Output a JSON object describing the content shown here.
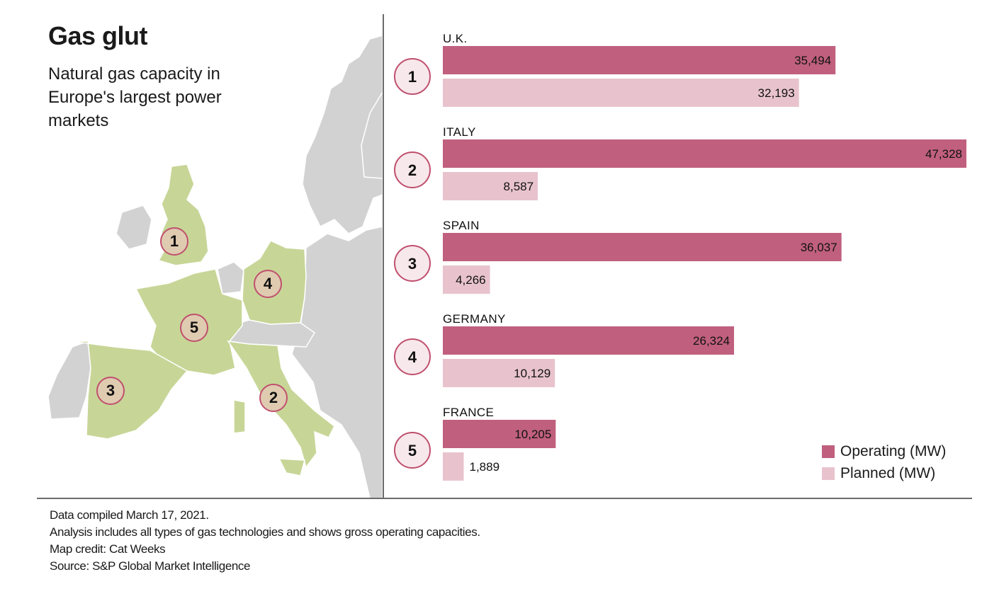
{
  "title": "Gas glut",
  "subtitle": "Natural gas capacity in Europe's largest power markets",
  "colors": {
    "operating": "#c0607e",
    "planned": "#e8c3cd",
    "highlight_land": "#c7d697",
    "other_land": "#d2d2d2",
    "marker_fill": "#dfcbb0",
    "marker_stroke": "#c0506e",
    "rank_circle_fill": "#f7e8ec"
  },
  "map_markers": [
    "1",
    "2",
    "3",
    "4",
    "5"
  ],
  "chart_data": {
    "type": "bar",
    "orientation": "horizontal",
    "categories": [
      "U.K.",
      "ITALY",
      "SPAIN",
      "GERMANY",
      "FRANCE"
    ],
    "ranks": [
      "1",
      "2",
      "3",
      "4",
      "5"
    ],
    "series": [
      {
        "name": "Operating (MW)",
        "values": [
          35494,
          47328,
          36037,
          26324,
          10205
        ]
      },
      {
        "name": "Planned (MW)",
        "values": [
          32193,
          8587,
          4266,
          10129,
          1889
        ]
      }
    ],
    "value_labels": [
      [
        "35,494",
        "47,328",
        "36,037",
        "26,324",
        "10,205"
      ],
      [
        "32,193",
        "8,587",
        "4,266",
        "10,129",
        "1,889"
      ]
    ],
    "xlim": [
      0,
      47328
    ],
    "grid": false,
    "legend_position": "bottom-right"
  },
  "legend": [
    {
      "label": "Operating (MW)"
    },
    {
      "label": "Planned (MW)"
    }
  ],
  "footer": {
    "line1": "Data compiled March 17, 2021.",
    "line2": "Analysis includes all types of gas technologies and shows gross operating capacities.",
    "line3": "Map credit: Cat Weeks",
    "line4": "Source: S&P Global Market Intelligence"
  }
}
